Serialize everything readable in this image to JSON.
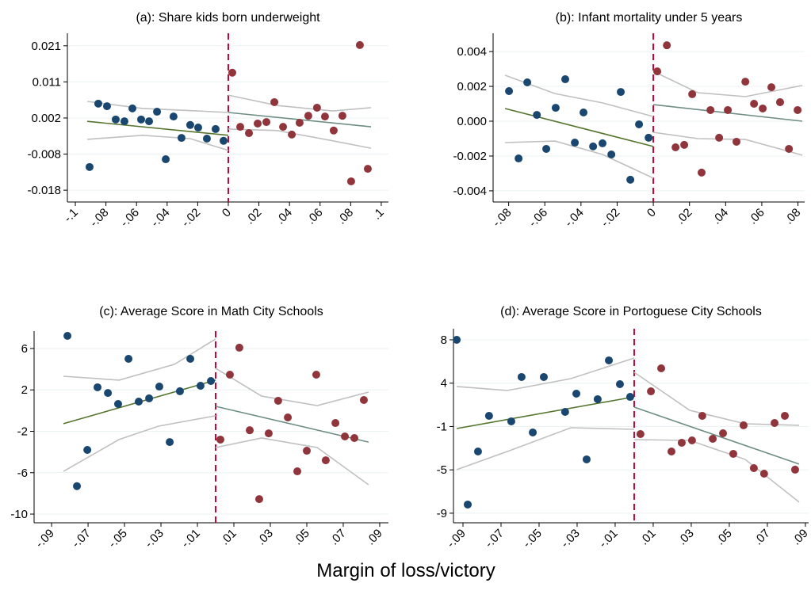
{
  "chart_data": [
    {
      "type": "scatter",
      "title": "(a): Share kids born underweight",
      "xlim": [
        -0.1052,
        0.1047
      ],
      "ylim": [
        -0.0212,
        0.0246
      ],
      "xticks": [
        {
          "value": -0.1,
          "label": "-.1"
        },
        {
          "value": -0.08,
          "label": "-.08"
        },
        {
          "value": -0.06,
          "label": "-.06"
        },
        {
          "value": -0.04,
          "label": "-.04"
        },
        {
          "value": -0.02,
          "label": "-.02"
        },
        0,
        {
          "value": 0.02,
          "label": ".02"
        },
        {
          "value": 0.04,
          "label": ".04"
        },
        {
          "value": 0.06,
          "label": ".06"
        },
        {
          "value": 0.08,
          "label": ".08"
        },
        {
          "value": 0.1,
          "label": ".1"
        }
      ],
      "yticks": [
        {
          "value": -0.018,
          "label": "-0.018"
        },
        {
          "value": -0.0082,
          "label": "-0.008"
        },
        {
          "value": 0.0016,
          "label": "0.002"
        },
        {
          "value": 0.0114,
          "label": "0.011"
        },
        {
          "value": 0.0212,
          "label": "0.021"
        }
      ],
      "grid": true,
      "cutoff": {
        "value": 0,
        "color": "#c10534"
      },
      "series": [
        {
          "mark": "line",
          "color": "#c0c0c0",
          "x": [
            -0.0922,
            -0.056,
            -0.0197,
            0
          ],
          "values": [
            0.0061,
            0.0042,
            0.0035,
            0.0031
          ]
        },
        {
          "mark": "line",
          "color": "#c0c0c0",
          "x": [
            -0.0922,
            -0.056,
            -0.0249,
            0
          ],
          "values": [
            -0.0042,
            -0.0031,
            -0.004,
            -0.0072
          ]
        },
        {
          "mark": "line",
          "color": "#c0c0c0",
          "x": [
            0,
            0.0321,
            0.0684,
            0.0933
          ],
          "values": [
            0.0078,
            0.005,
            0.0035,
            0.0044
          ]
        },
        {
          "mark": "line",
          "color": "#c0c0c0",
          "x": [
            0,
            0.0321,
            0.0684,
            0.0933
          ],
          "values": [
            -0.0014,
            -0.0018,
            -0.0046,
            -0.0066
          ]
        },
        {
          "mark": "line",
          "color": "#55752f",
          "x": [
            -0.0922,
            0
          ],
          "values": [
            0.0007,
            -0.0031
          ]
        },
        {
          "mark": "line",
          "color": "#6e8e84",
          "x": [
            0,
            0.0933
          ],
          "values": [
            0.0031,
            -0.0008
          ]
        },
        {
          "mark": "point",
          "color": "#1a476f",
          "x": [
            -0.0907,
            -0.085,
            -0.0793,
            -0.0736,
            -0.0679,
            -0.0627,
            -0.057,
            -0.0518,
            -0.0466,
            -0.0409,
            -0.0358,
            -0.0306,
            -0.0249,
            -0.0197,
            -0.014,
            -0.0083,
            -0.0031
          ],
          "values": [
            -0.0117,
            0.0055,
            0.0048,
            0.0012,
            0.0007,
            0.0042,
            0.0012,
            0.0007,
            0.0033,
            -0.0096,
            0.002,
            -0.0038,
            -0.0003,
            -0.001,
            -0.004,
            -0.0014,
            -0.0046
          ]
        },
        {
          "mark": "point",
          "color": "#90353b",
          "x": [
            0.0026,
            0.0078,
            0.0135,
            0.0192,
            0.0249,
            0.0301,
            0.0358,
            0.0415,
            0.0466,
            0.0523,
            0.058,
            0.0632,
            0.0689,
            0.0746,
            0.0803,
            0.086,
            0.0912
          ],
          "values": [
            0.0139,
            -0.0008,
            -0.0025,
            0.0001,
            0.0005,
            0.0059,
            -0.0008,
            -0.0029,
            0.0003,
            0.0022,
            0.0044,
            0.002,
            -0.0018,
            0.0022,
            -0.0156,
            0.0214,
            -0.0122
          ]
        }
      ]
    },
    {
      "type": "scatter",
      "title": "(b): Infant mortality under 5 years",
      "xlim": [
        -0.0886,
        0.0837
      ],
      "ylim": [
        -0.00464,
        0.00505
      ],
      "xticks": [
        {
          "value": -0.08,
          "label": "-.08"
        },
        {
          "value": -0.06,
          "label": "-.06"
        },
        {
          "value": -0.04,
          "label": "-.04"
        },
        {
          "value": -0.02,
          "label": "-.02"
        },
        0,
        {
          "value": 0.02,
          "label": ".02"
        },
        {
          "value": 0.04,
          "label": ".04"
        },
        {
          "value": 0.06,
          "label": ".06"
        },
        {
          "value": 0.08,
          "label": ".08"
        }
      ],
      "yticks": [
        {
          "value": -0.004,
          "label": "-0.004"
        },
        {
          "value": -0.002,
          "label": "-0.002"
        },
        {
          "value": 0,
          "label": "0.000"
        },
        {
          "value": 0.002,
          "label": "0.002"
        },
        {
          "value": 0.004,
          "label": "0.004"
        }
      ],
      "grid": true,
      "cutoff": {
        "value": 0,
        "color": "#c10534"
      },
      "series": [
        {
          "mark": "line",
          "color": "#c0c0c0",
          "x": [
            -0.082,
            -0.0544,
            -0.0281,
            0
          ],
          "values": [
            0.00264,
            0.00159,
            0.00105,
            0.00027
          ]
        },
        {
          "mark": "line",
          "color": "#c0c0c0",
          "x": [
            -0.082,
            -0.0544,
            -0.0281,
            0
          ],
          "values": [
            -0.00123,
            -0.00114,
            -0.00191,
            -0.00327
          ]
        },
        {
          "mark": "line",
          "color": "#c0c0c0",
          "x": [
            0,
            0.0246,
            0.0509,
            0.0824
          ],
          "values": [
            0.00286,
            0.00164,
            0.00141,
            0.00205
          ]
        },
        {
          "mark": "line",
          "color": "#c0c0c0",
          "x": [
            0,
            0.0246,
            0.0509,
            0.0824
          ],
          "values": [
            -0.00064,
            -0.001,
            -0.00105,
            -0.00195
          ]
        },
        {
          "mark": "line",
          "color": "#55752f",
          "x": [
            -0.082,
            0
          ],
          "values": [
            0.00073,
            -0.00145
          ]
        },
        {
          "mark": "line",
          "color": "#6e8e84",
          "x": [
            0,
            0.0824
          ],
          "values": [
            0.00095,
            0
          ]
        },
        {
          "mark": "point",
          "color": "#1a476f",
          "x": [
            -0.0798,
            -0.0745,
            -0.0697,
            -0.0644,
            -0.0592,
            -0.054,
            -0.0487,
            -0.0434,
            -0.0386,
            -0.0333,
            -0.0281,
            -0.0232,
            -0.018,
            -0.0127,
            -0.0079,
            -0.0026
          ],
          "values": [
            0.00173,
            -0.00214,
            0.00223,
            0.00036,
            -0.00159,
            0.00077,
            0.00241,
            -0.00123,
            0.0005,
            -0.00145,
            -0.00127,
            -0.00191,
            0.00168,
            -0.00336,
            -0.00018,
            -0.00095
          ]
        },
        {
          "mark": "point",
          "color": "#90353b",
          "x": [
            0.0022,
            0.0075,
            0.0123,
            0.0171,
            0.0215,
            0.0267,
            0.0316,
            0.0364,
            0.0412,
            0.046,
            0.0509,
            0.0557,
            0.0605,
            0.0653,
            0.0701,
            0.075,
            0.0798
          ],
          "values": [
            0.00286,
            0.00436,
            -0.0015,
            -0.00136,
            0.00155,
            -0.00295,
            0.00064,
            -0.00095,
            0.00064,
            -0.00118,
            0.00227,
            0.001,
            0.00073,
            0.00195,
            0.00109,
            -0.00159,
            0.00064
          ]
        }
      ]
    },
    {
      "type": "scatter",
      "title": "(c): Average Score in Math City Schools",
      "xlim": [
        -0.0996,
        0.0948
      ],
      "ylim": [
        -10.84,
        7.68
      ],
      "xticks": [
        {
          "value": -0.09,
          "label": "-.09"
        },
        {
          "value": -0.07,
          "label": "-.07"
        },
        {
          "value": -0.05,
          "label": "-.05"
        },
        {
          "value": -0.03,
          "label": "-.03"
        },
        {
          "value": -0.01,
          "label": "-.01"
        },
        {
          "value": 0.01,
          "label": ".01"
        },
        {
          "value": 0.03,
          "label": ".03"
        },
        {
          "value": 0.05,
          "label": ".05"
        },
        {
          "value": 0.07,
          "label": ".07"
        },
        {
          "value": 0.09,
          "label": ".09"
        }
      ],
      "yticks": [
        -10,
        -6,
        -2,
        2,
        6
      ],
      "grid": true,
      "cutoff": {
        "value": 0,
        "color": "#c10534"
      },
      "series": [
        {
          "mark": "line",
          "color": "#c0c0c0",
          "x": [
            -0.0835,
            -0.053,
            -0.0226,
            0
          ],
          "values": [
            3.32,
            2.94,
            4.47,
            6.92
          ]
        },
        {
          "mark": "line",
          "color": "#c0c0c0",
          "x": [
            -0.0835,
            -0.053,
            -0.0313,
            0
          ],
          "values": [
            -5.87,
            -2.8,
            -1.5,
            -0.5
          ]
        },
        {
          "mark": "line",
          "color": "#c0c0c0",
          "x": [
            0,
            0.0252,
            0.0557,
            0.0839
          ],
          "values": [
            4.09,
            1.4,
            0.49,
            1.79
          ]
        },
        {
          "mark": "line",
          "color": "#c0c0c0",
          "x": [
            0,
            0.0252,
            0.0557,
            0.0839
          ],
          "values": [
            -3.57,
            -2.65,
            -3.57,
            -7.17
          ]
        },
        {
          "mark": "line",
          "color": "#55752f",
          "x": [
            -0.0835,
            0
          ],
          "values": [
            -1.27,
            2.94
          ]
        },
        {
          "mark": "line",
          "color": "#6e8e84",
          "x": [
            0,
            0.0839
          ],
          "values": [
            0.41,
            -3.04
          ]
        },
        {
          "mark": "point",
          "color": "#1a476f",
          "x": [
            -0.0813,
            -0.0761,
            -0.0704,
            -0.0648,
            -0.0591,
            -0.0535,
            -0.0478,
            -0.0422,
            -0.0365,
            -0.0309,
            -0.0252,
            -0.0196,
            -0.0139,
            -0.0083,
            -0.0026
          ],
          "values": [
            7.22,
            -7.3,
            -3.8,
            2.25,
            1.7,
            0.64,
            5.0,
            0.87,
            1.18,
            2.32,
            -3.04,
            1.87,
            5.0,
            2.4,
            2.86
          ]
        },
        {
          "mark": "point",
          "color": "#90353b",
          "x": [
            0.0026,
            0.0078,
            0.013,
            0.0187,
            0.0239,
            0.0291,
            0.0343,
            0.0396,
            0.0448,
            0.05,
            0.0552,
            0.0604,
            0.0657,
            0.0709,
            0.0761,
            0.0813
          ],
          "values": [
            -2.8,
            3.47,
            6.08,
            -1.9,
            -8.55,
            -2.2,
            0.95,
            -0.66,
            -5.87,
            -3.88,
            3.47,
            -4.8,
            -1.2,
            -2.5,
            -2.65,
            1.02
          ]
        }
      ]
    },
    {
      "type": "scatter",
      "title": "(d): Average Score in Portoguese City Schools",
      "xlim": [
        -0.095,
        0.0917
      ],
      "ylim": [
        -10.15,
        9.1
      ],
      "xticks": [
        {
          "value": -0.09,
          "label": "-.09"
        },
        {
          "value": -0.07,
          "label": "-.07"
        },
        {
          "value": -0.05,
          "label": "-.05"
        },
        {
          "value": -0.03,
          "label": "-.03"
        },
        {
          "value": -0.01,
          "label": "-.01"
        },
        {
          "value": 0.01,
          "label": ".01"
        },
        {
          "value": 0.03,
          "label": ".03"
        },
        {
          "value": 0.05,
          "label": ".05"
        },
        {
          "value": 0.07,
          "label": ".07"
        },
        {
          "value": 0.09,
          "label": ".09"
        }
      ],
      "yticks": [
        {
          "value": -9.2,
          "label": "-9"
        },
        {
          "value": -4.9,
          "label": "-5"
        },
        {
          "value": -0.6,
          "label": "-1"
        },
        {
          "value": 3.7,
          "label": "4"
        },
        8
      ],
      "grid": true,
      "cutoff": {
        "value": 0,
        "color": "#c10534"
      },
      "series": [
        {
          "mark": "line",
          "color": "#c0c0c0",
          "x": [
            -0.0933,
            -0.0667,
            -0.0333,
            0
          ],
          "values": [
            3.37,
            2.97,
            4.15,
            6.19
          ]
        },
        {
          "mark": "line",
          "color": "#c0c0c0",
          "x": [
            -0.0933,
            -0.0667,
            -0.0333,
            0
          ],
          "values": [
            -4.88,
            -3.08,
            -0.72,
            -0.88
          ]
        },
        {
          "mark": "line",
          "color": "#c0c0c0",
          "x": [
            0,
            0.0292,
            0.0583,
            0.0867
          ],
          "values": [
            4.78,
            1.01,
            -0.33,
            -0.48
          ]
        },
        {
          "mark": "line",
          "color": "#c0c0c0",
          "x": [
            0,
            0.0292,
            0.0583,
            0.0867
          ],
          "values": [
            -1.9,
            -1.98,
            -3.86,
            -8.1
          ]
        },
        {
          "mark": "line",
          "color": "#55752f",
          "x": [
            -0.0933,
            0
          ],
          "values": [
            -0.8,
            2.34
          ]
        },
        {
          "mark": "line",
          "color": "#6e8e84",
          "x": [
            0,
            0.0867
          ],
          "values": [
            1.32,
            -4.33
          ]
        },
        {
          "mark": "point",
          "color": "#1a476f",
          "x": [
            -0.0933,
            -0.0875,
            -0.0821,
            -0.0763,
            -0.0646,
            -0.0592,
            -0.0533,
            -0.0475,
            -0.0363,
            -0.0304,
            -0.025,
            -0.0192,
            -0.0133,
            -0.0075,
            -0.0021
          ],
          "values": [
            8.0,
            -8.34,
            -3.08,
            0.46,
            -0.09,
            4.31,
            -1.19,
            4.31,
            0.85,
            2.66,
            -3.86,
            2.11,
            5.96,
            3.6,
            2.34
          ]
        },
        {
          "mark": "point",
          "color": "#90353b",
          "x": [
            0.0033,
            0.0088,
            0.0142,
            0.0196,
            0.025,
            0.0304,
            0.0358,
            0.0413,
            0.0467,
            0.0521,
            0.0575,
            0.0629,
            0.0683,
            0.0738,
            0.0792,
            0.0846
          ],
          "values": [
            -1.35,
            2.89,
            5.17,
            -3.08,
            -2.21,
            -1.98,
            0.46,
            -1.82,
            -1.27,
            -3.31,
            -0.48,
            -4.73,
            -5.28,
            -0.25,
            0.46,
            -4.88
          ]
        }
      ]
    }
  ],
  "xlabel": "Margin of loss/victory"
}
